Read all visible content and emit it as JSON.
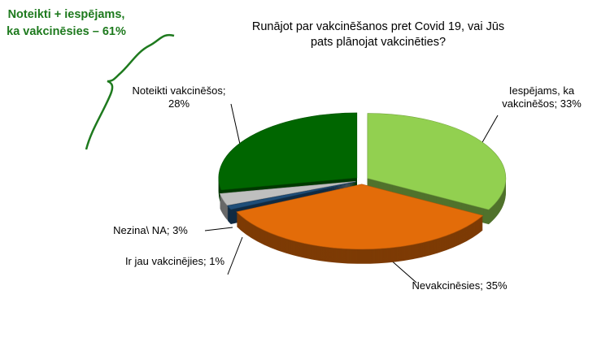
{
  "chart_data": {
    "type": "pie",
    "title": "Runājot par vakcinēšanos pret Covid 19, vai Jūs pats plānojat vakcinēties?",
    "annotation": "Noteikti + iespējams, ka vakcinēsies – 61%",
    "values": [
      33,
      35,
      1,
      3,
      28
    ],
    "value_labels": [
      "Iespējams, ka vakcinēšos; 33%",
      "Nevakcinēsies; 35%",
      "Ir jau vakcinējies; 1%",
      "Nezina\\ NA; 3%",
      "Noteikti vakcinēšos; 28%"
    ],
    "colors": [
      "#92d050",
      "#e36c09",
      "#1f4e79",
      "#bfbfbf",
      "#006600"
    ]
  }
}
